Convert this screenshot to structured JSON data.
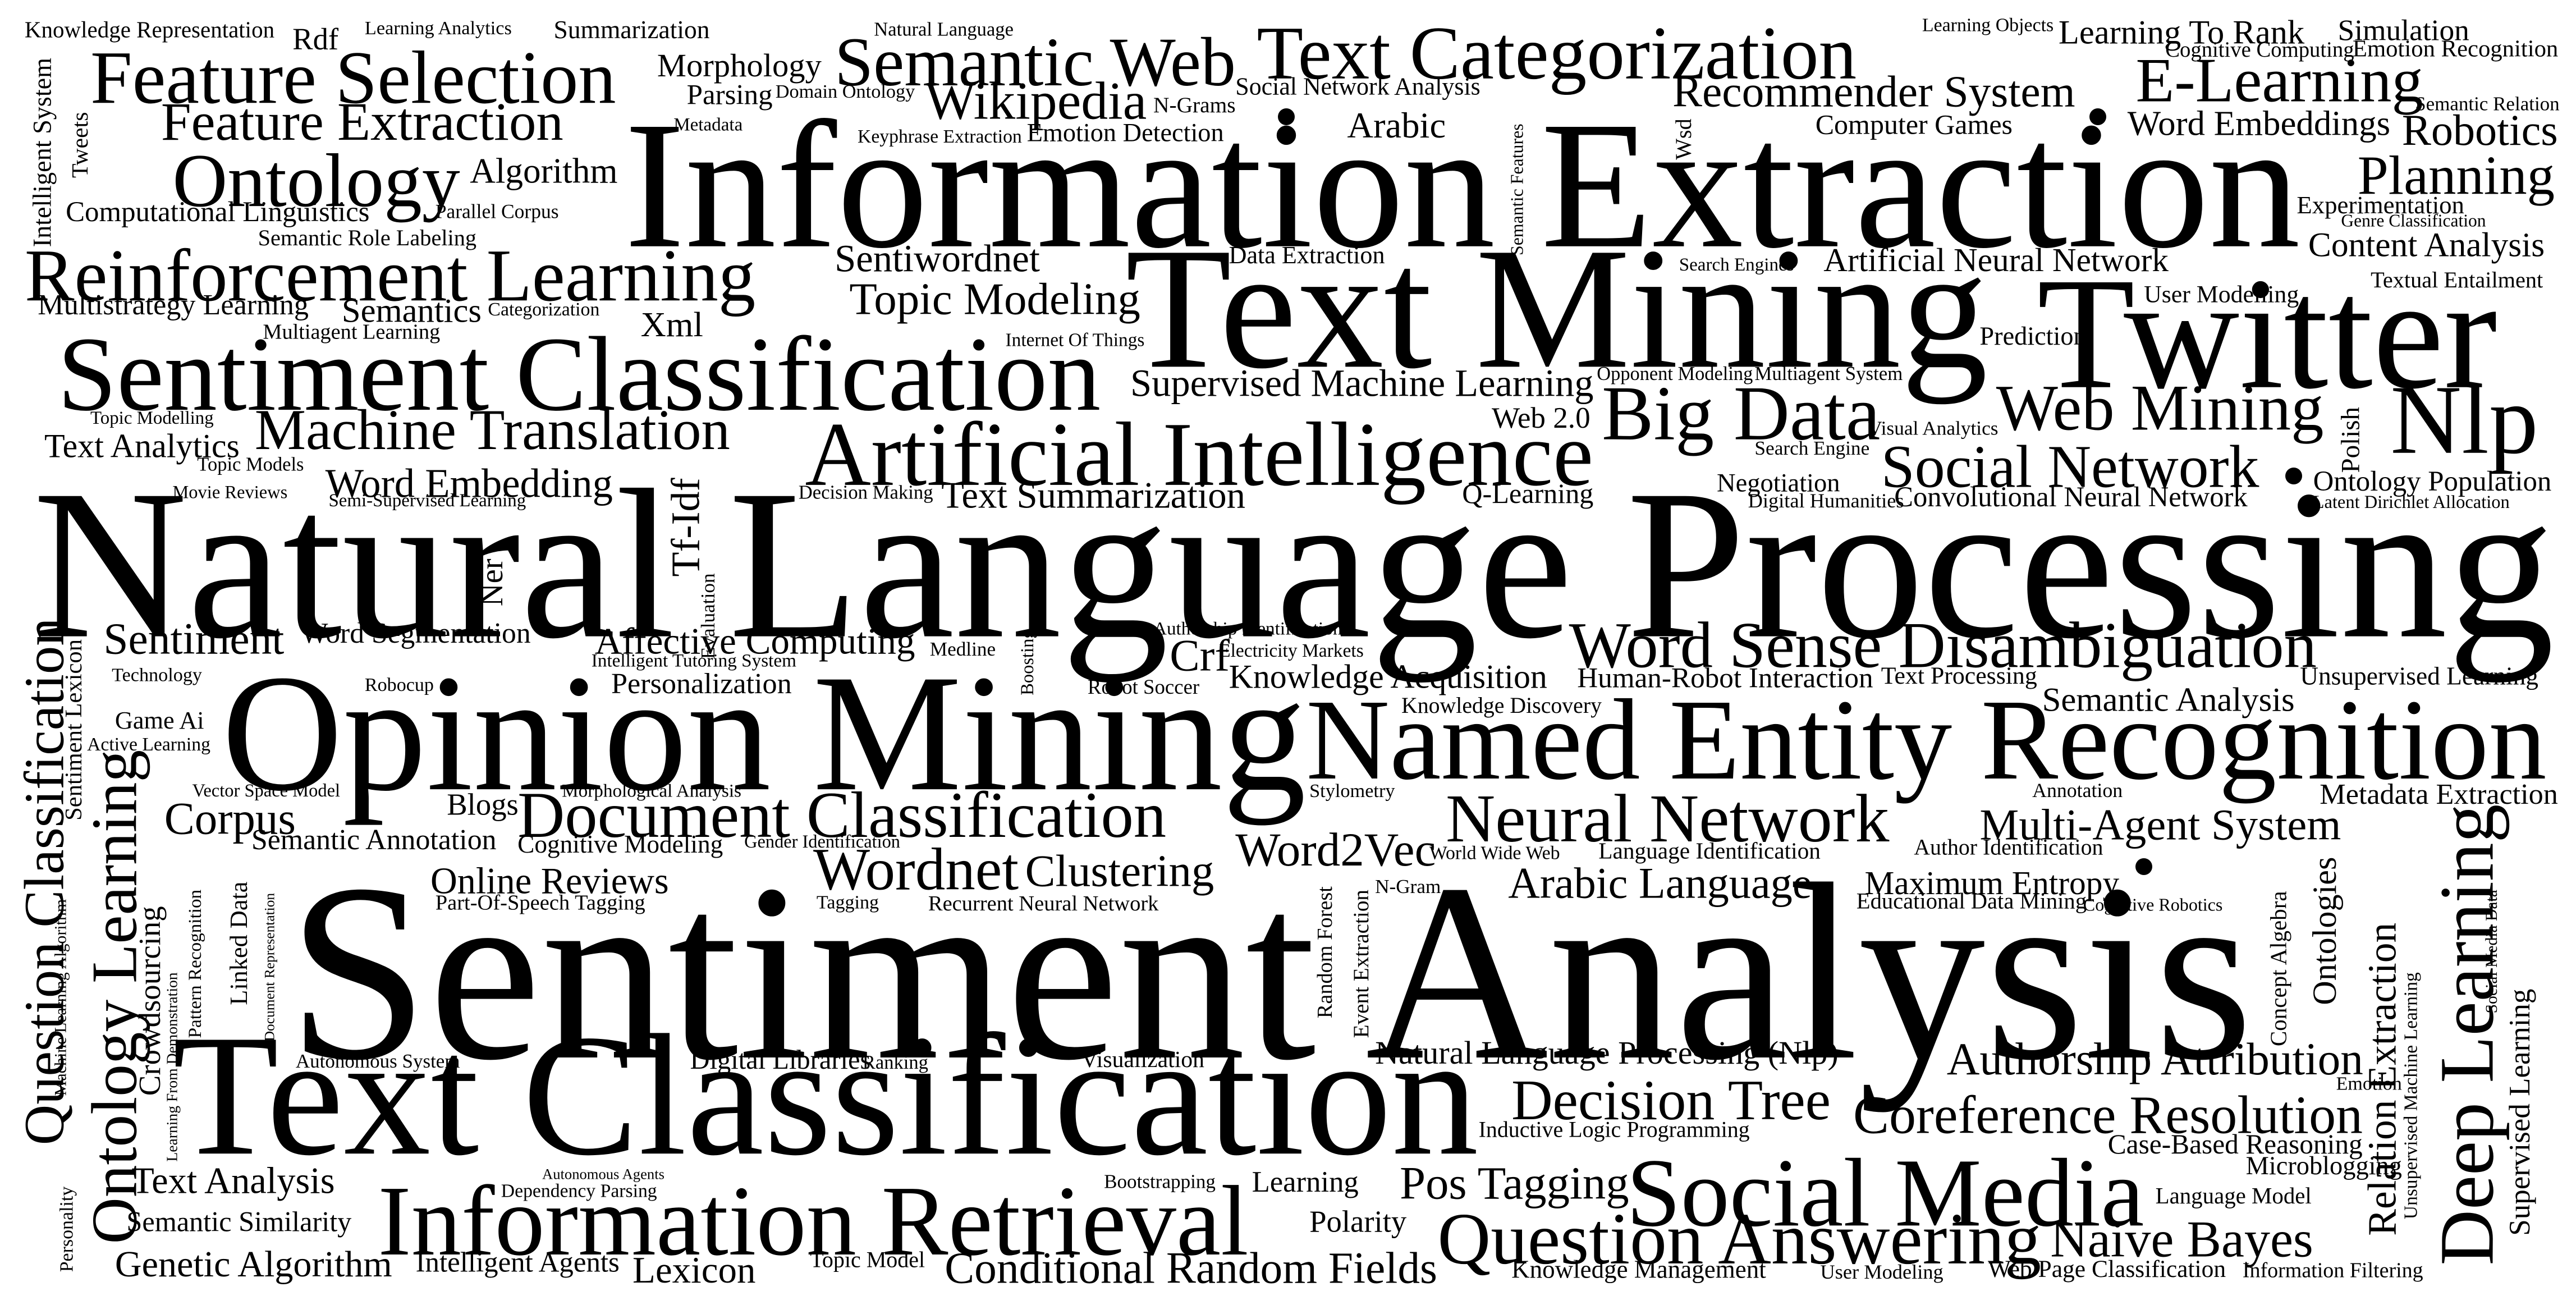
{
  "words": [
    "Natural Language Processing",
    "Sentiment Analysis",
    "Information Extraction",
    "Text Mining",
    "Text Classification",
    "Opinion Mining",
    "Named Entity Recognition",
    "Twitter",
    "Sentiment Classification",
    "Information Retrieval",
    "Social Media",
    "Artificial Intelligence",
    "Reinforcement Learning",
    "Feature Selection",
    "Semantic Web",
    "Text Categorization",
    "Nlp",
    "Deep Learning",
    "Word Sense Disambiguation",
    "Document Classification",
    "Neural Network",
    "Ontology",
    "Question Answering",
    "Naive Bayes",
    "Machine Translation",
    "Big Data",
    "Web Mining",
    "Social Network",
    "Coreference Resolution",
    "E-Learning",
    "Relation Extraction",
    "Question Classification",
    "Ontology Learning",
    "Wordnet",
    "Decision Tree",
    "Authorship Attribution",
    "Conditional Random Fields",
    "Feature Extraction",
    "Wikipedia",
    "Recommender System",
    "Planning",
    "Multi-Agent System",
    "Arabic Language",
    "Word2Vec",
    "Clustering",
    "Topic Modeling",
    "Supervised Machine Learning",
    "Word Embedding",
    "Text Summarization",
    "Affective Computing",
    "Online Reviews",
    "Pos Tagging",
    "Natural Language Processing (Nlp)",
    "Supervised Learning",
    "Text Analysis",
    "Genetic Algorithm",
    "Corpus",
    "Sentiment",
    "Knowledge Acquisition",
    "Semantic Annotation",
    "Crowdsourcing",
    "Maximum Entropy",
    "Robotics",
    "Tf-Idf",
    "Lexicon",
    "Semantic Analysis",
    "Crf",
    "Sentiwordnet",
    "Xml",
    "Artificial Neural Network",
    "Content Analysis",
    "Word Embeddings",
    "Learning To Rank",
    "Algorithm",
    "Morphology",
    "Arabic",
    "Semantics",
    "Text Analytics",
    "Computational Linguistics",
    "Multistrategy Learning",
    "Ontologies",
    "Microblogging",
    "Case-Based Reasoning",
    "Metadata Extraction",
    "Personalization",
    "Word Segmentation",
    "Semantic Similarity",
    "Intelligent Agents",
    "Topic Model",
    "Ontology Population",
    "Convolutional Neural Network",
    "Human-Robot Interaction",
    "Cognitive Modeling",
    "Blogs",
    "Web 2.0",
    "Q-Learning",
    "Unsupervised Learning",
    "Simulation",
    "Cognitive Computing",
    "Computer Games",
    "Experimentation",
    "Semantic Role Labeling",
    "Digital Libraries",
    "Visualization",
    "Polarity",
    "Learning",
    "Knowledge Management",
    "Web Page Classification",
    "Information Filtering",
    "Linked Data",
    "Pattern Recognition",
    "Concept Algebra",
    "Random Forest",
    "Event Extraction",
    "Inductive Logic Programming",
    "Knowledge Representation",
    "Rdf",
    "Learning Analytics",
    "Summarization",
    "Natural Language",
    "Learning Objects",
    "Emotion Recognition",
    "Semantic Relation",
    "Parsing",
    "Domain Ontology",
    "Social Network Analysis",
    "N-Grams",
    "Keyphrase Extraction",
    "Emotion Detection",
    "Metadata",
    "Parallel Corpus",
    "Data Extraction",
    "Search Engines",
    "User Modelling",
    "Textual Entailment",
    "Genre Classification",
    "Categorization",
    "Multiagent Learning",
    "Internet Of Things",
    "Prediction",
    "Opponent Modeling",
    "Multiagent System",
    "Topic Modelling",
    "Topic Models",
    "Movie Reviews",
    "Semi-Supervised Learning",
    "Decision Making",
    "Visual Analytics",
    "Search Engine",
    "Negotiation",
    "Digital Humanities",
    "Latent Dirichlet Allocation",
    "Polish",
    "Ner",
    "Evaluation",
    "Authorship Identification",
    "Electricity Markets",
    "Medline",
    "Boosting",
    "Intelligent Tutoring System",
    "Robot Soccer",
    "Text Processing",
    "Technology",
    "Robocup",
    "Knowledge Discovery",
    "Game Ai",
    "Active Learning",
    "Vector Space Model",
    "Morphological Analysis",
    "Stylometry",
    "Annotation",
    "Gender Identification",
    "World Wide Web",
    "Language Identification",
    "Author Identification",
    "Part-Of-Speech Tagging",
    "Tagging",
    "Recurrent Neural Network",
    "N-Gram",
    "Educational Data Mining",
    "Cognitive Robotics",
    "Autonomous System",
    "Ranking",
    "Emotion",
    "Language Model",
    "Autonomous Agents",
    "Dependency Parsing",
    "Bootstrapping",
    "User Modeling",
    "Personality",
    "Intelligent System",
    "Tweets",
    "Wsd",
    "Semantic Features",
    "Sentiment Lexicon",
    "Machine Learning Algorithm",
    "Learning From Demonstration",
    "Document Representation",
    "Unsupervised Machine Learning",
    "Social Media Data"
  ]
}
